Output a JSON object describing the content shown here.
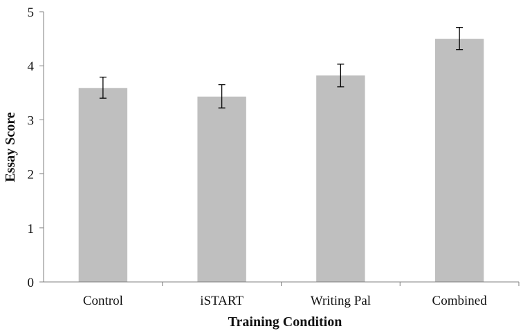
{
  "chart_data": {
    "type": "bar",
    "title": "",
    "xlabel": "Training Condition",
    "ylabel": "Essay Score",
    "categories": [
      "Control",
      "iSTART",
      "Writing Pal",
      "Combined"
    ],
    "values": [
      3.59,
      3.43,
      3.82,
      4.5
    ],
    "error_bars": [
      {
        "low": 3.4,
        "high": 3.79
      },
      {
        "low": 3.22,
        "high": 3.65
      },
      {
        "low": 3.61,
        "high": 4.03
      },
      {
        "low": 4.3,
        "high": 4.71
      }
    ],
    "ylim": [
      0,
      5
    ],
    "yticks": [
      "0",
      "1",
      "2",
      "3",
      "4",
      "5"
    ],
    "grid": false,
    "bar_color": "#bfbfbf",
    "axis_color": "#7f7f7f",
    "errorbar_color": "#000000"
  }
}
